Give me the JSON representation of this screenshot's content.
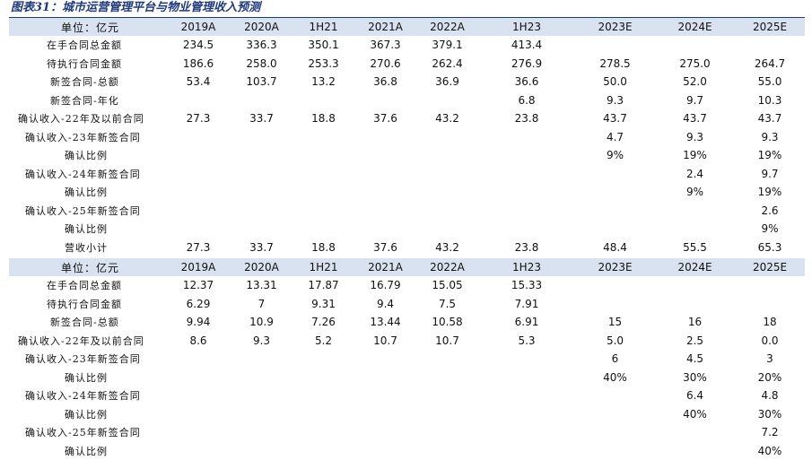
{
  "title": "图表31：城市运营管理平台与物业管理收入预测",
  "table1": {
    "unit": "单位：亿元",
    "columns": [
      "2019A",
      "2020A",
      "1H21",
      "2021A",
      "2022A",
      "1H23",
      "2023E",
      "2024E",
      "2025E"
    ],
    "rows": [
      {
        "label": "在手合同总金额",
        "indent": 42,
        "values": [
          "234.5",
          "336.3",
          "350.1",
          "367.3",
          "379.1",
          "413.4",
          "",
          "",
          ""
        ]
      },
      {
        "label": "待执行合同金额",
        "indent": 42,
        "values": [
          "186.6",
          "258.0",
          "253.3",
          "270.6",
          "262.4",
          "276.9",
          "278.5",
          "275.0",
          "264.7"
        ]
      },
      {
        "label": "新签合同-总额",
        "indent": 46,
        "values": [
          "53.4",
          "103.7",
          "13.2",
          "36.8",
          "36.9",
          "36.6",
          "50.0",
          "52.0",
          "55.0"
        ]
      },
      {
        "label": "新签合同-年化",
        "indent": 46,
        "values": [
          "",
          "",
          "",
          "",
          "",
          "6.8",
          "9.3",
          "9.7",
          "10.3"
        ]
      },
      {
        "label": "确认收入-22年及以前合同",
        "indent": 10,
        "values": [
          "27.3",
          "33.7",
          "18.8",
          "37.6",
          "43.2",
          "23.8",
          "43.7",
          "43.7",
          "43.7"
        ]
      },
      {
        "label": "确认收入-23年新签合同",
        "indent": 18,
        "values": [
          "",
          "",
          "",
          "",
          "",
          "",
          "4.7",
          "9.3",
          "9.3"
        ]
      },
      {
        "label": "确认比例",
        "indent": 62,
        "values": [
          "",
          "",
          "",
          "",
          "",
          "",
          "9%",
          "19%",
          "19%"
        ]
      },
      {
        "label": "确认收入-24年新签合同",
        "indent": 18,
        "values": [
          "",
          "",
          "",
          "",
          "",
          "",
          "",
          "2.4",
          "9.7"
        ]
      },
      {
        "label": "确认比例",
        "indent": 62,
        "values": [
          "",
          "",
          "",
          "",
          "",
          "",
          "",
          "9%",
          "19%"
        ]
      },
      {
        "label": "确认收入-25年新签合同",
        "indent": 18,
        "values": [
          "",
          "",
          "",
          "",
          "",
          "",
          "",
          "",
          "2.6"
        ]
      },
      {
        "label": "确认比例",
        "indent": 62,
        "values": [
          "",
          "",
          "",
          "",
          "",
          "",
          "",
          "",
          "9%"
        ]
      },
      {
        "label": "营收小计",
        "indent": 62,
        "values": [
          "27.3",
          "33.7",
          "18.8",
          "37.6",
          "43.2",
          "23.8",
          "48.4",
          "55.5",
          "65.3"
        ]
      }
    ]
  },
  "table2": {
    "unit": "单位：亿元",
    "columns": [
      "2019A",
      "2020A",
      "1H21",
      "2021A",
      "2022A",
      "1H23",
      "2023E",
      "2024E",
      "2025E"
    ],
    "rows": [
      {
        "label": "在手合同总金额",
        "indent": 42,
        "values": [
          "12.37",
          "13.31",
          "17.87",
          "16.79",
          "15.05",
          "15.33",
          "",
          "",
          ""
        ]
      },
      {
        "label": "待执行合同金额",
        "indent": 42,
        "values": [
          "6.29",
          "7",
          "9.31",
          "9.4",
          "7.5",
          "7.91",
          "",
          "",
          ""
        ]
      },
      {
        "label": "新签合同-总额",
        "indent": 46,
        "values": [
          "9.94",
          "10.9",
          "7.26",
          "13.44",
          "10.58",
          "6.91",
          "15",
          "16",
          "18"
        ]
      },
      {
        "label": "确认收入-22年及以前合同",
        "indent": 10,
        "values": [
          "8.6",
          "9.3",
          "5.2",
          "10.7",
          "10.7",
          "5.3",
          "5.0",
          "2.5",
          "0.0"
        ]
      },
      {
        "label": "确认收入-23年新签合同",
        "indent": 18,
        "values": [
          "",
          "",
          "",
          "",
          "",
          "",
          "6",
          "4.5",
          "3"
        ]
      },
      {
        "label": "确认比例",
        "indent": 62,
        "values": [
          "",
          "",
          "",
          "",
          "",
          "",
          "40%",
          "30%",
          "20%"
        ]
      },
      {
        "label": "确认收入-24年新签合同",
        "indent": 18,
        "values": [
          "",
          "",
          "",
          "",
          "",
          "",
          "",
          "6.4",
          "4.8"
        ]
      },
      {
        "label": "确认比例",
        "indent": 62,
        "values": [
          "",
          "",
          "",
          "",
          "",
          "",
          "",
          "40%",
          "30%"
        ]
      },
      {
        "label": "确认收入-25年新签合同",
        "indent": 18,
        "values": [
          "",
          "",
          "",
          "",
          "",
          "",
          "",
          "",
          "7.2"
        ]
      },
      {
        "label": "确认比例",
        "indent": 62,
        "values": [
          "",
          "",
          "",
          "",
          "",
          "",
          "",
          "",
          "40%"
        ]
      }
    ]
  }
}
